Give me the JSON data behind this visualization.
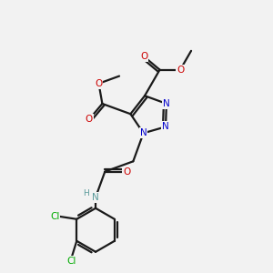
{
  "background_color": "#f2f2f2",
  "bond_color": "#1a1a1a",
  "colors": {
    "N": "#0000cc",
    "O": "#cc0000",
    "C": "#1a1a1a",
    "Cl": "#00aa00",
    "H": "#5a9a9a",
    "methyl": "#cc0000"
  },
  "figsize": [
    3.0,
    3.0
  ],
  "dpi": 100,
  "lw": 1.6,
  "xlim": [
    0,
    10
  ],
  "ylim": [
    0,
    10
  ]
}
